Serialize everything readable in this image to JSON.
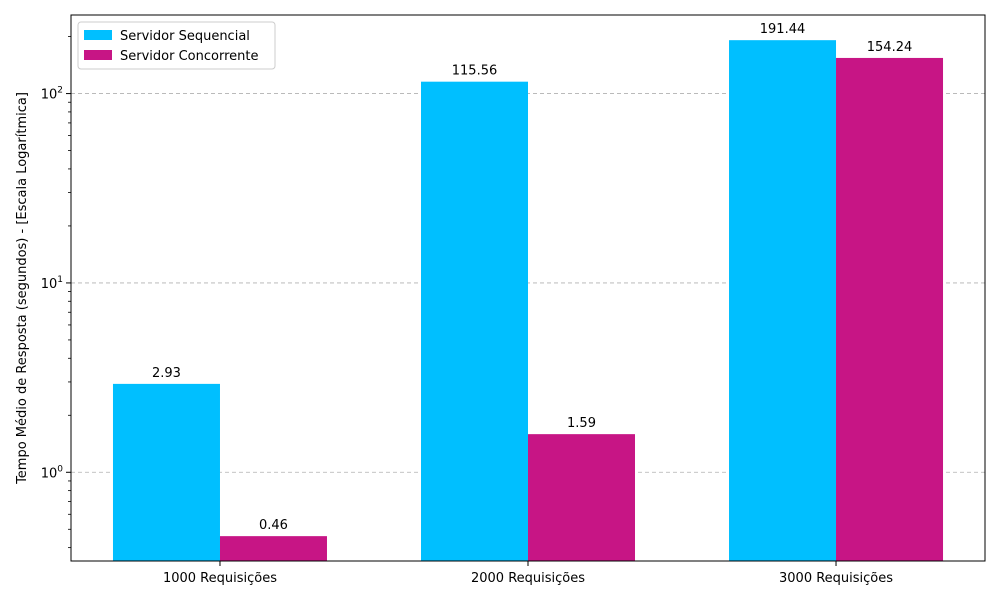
{
  "chart_data": {
    "type": "bar",
    "title": "",
    "xlabel": "",
    "ylabel": "Tempo Médio de Resposta (segundos) - [Escala Logarítmica]",
    "y_scale": "log",
    "ylim": [
      0.34,
      260
    ],
    "y_major_ticks": [
      {
        "base": "10",
        "exp": "0",
        "value": 1
      },
      {
        "base": "10",
        "exp": "1",
        "value": 10
      },
      {
        "base": "10",
        "exp": "2",
        "value": 100
      }
    ],
    "grid": "y-major dashed",
    "legend_position": "top-left",
    "categories": [
      "1000 Requisições",
      "2000 Requisições",
      "3000 Requisições"
    ],
    "series": [
      {
        "name": "Servidor Sequencial",
        "color": "#00BFFF",
        "values": [
          2.93,
          115.56,
          191.44
        ],
        "labels": [
          "2.93",
          "115.56",
          "191.44"
        ]
      },
      {
        "name": "Servidor Concorrente",
        "color": "#C71585",
        "values": [
          0.46,
          1.59,
          154.24
        ],
        "labels": [
          "0.46",
          "1.59",
          "154.24"
        ]
      }
    ]
  }
}
